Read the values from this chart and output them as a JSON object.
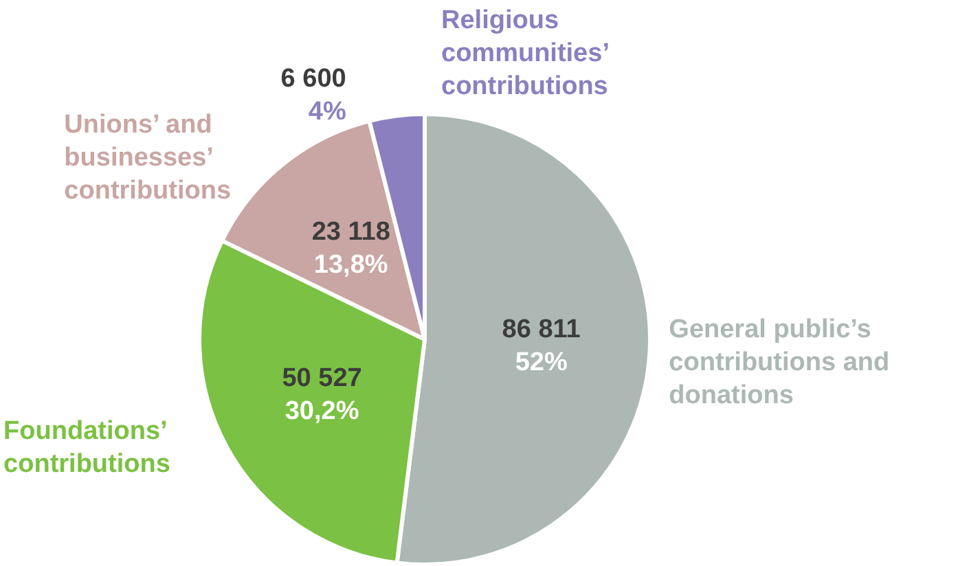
{
  "chart_data": {
    "type": "pie",
    "categories": [
      "General public’s contributions and donations",
      "Foundations’ contributions",
      "Unions’ and businesses’ contributions",
      "Religious communities’ contributions"
    ],
    "values": [
      86811,
      50527,
      23118,
      6600
    ],
    "colors": [
      "#adb8b4",
      "#7bc143",
      "#c9a6a3",
      "#8b7fc0"
    ],
    "value_labels": [
      "86 811\n52%",
      "50 527\n30,2%",
      "23 118\n13,8%",
      "6 600\n4%"
    ],
    "legend": false
  }
}
